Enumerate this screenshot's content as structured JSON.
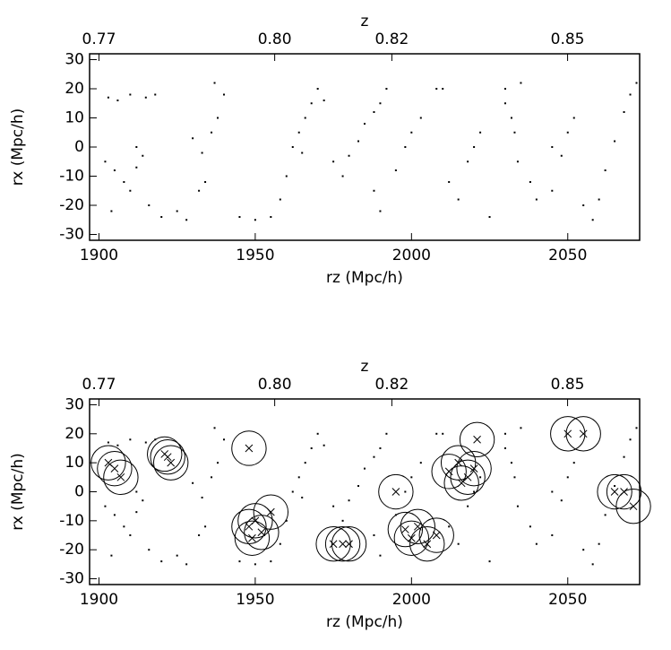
{
  "chart_data": [
    {
      "type": "scatter",
      "x_label": "rz (Mpc/h)",
      "y_label": "rx (Mpc/h)",
      "x2_label": "z",
      "xlim": [
        1897,
        2073
      ],
      "ylim": [
        -32,
        32
      ],
      "xticks": [
        1900,
        1950,
        2000,
        2050
      ],
      "yticks": [
        -30,
        -20,
        -10,
        0,
        10,
        20,
        30
      ],
      "x2lim": [
        0.7684,
        0.8623
      ],
      "x2ticks": [
        0.77,
        {
          "value": 0.8,
          "label": "0.80"
        },
        0.82,
        0.85
      ],
      "series": [
        {
          "marker": "dot",
          "color": "#000000",
          "x": [
            1903,
            1906,
            1910,
            1915,
            1918,
            1902,
            1905,
            1908,
            1910,
            1912,
            1914,
            1912,
            1916,
            1904,
            1920,
            1925,
            1928,
            1932,
            1934,
            1933,
            1936,
            1938,
            1940,
            1937,
            1930,
            1945,
            1950,
            1955,
            1958,
            1960,
            1962,
            1964,
            1966,
            1968,
            1970,
            1972,
            1965,
            1975,
            1978,
            1980,
            1983,
            1985,
            1988,
            1990,
            1992,
            1988,
            1990,
            1995,
            1998,
            2000,
            2003,
            2008,
            2010,
            2012,
            2015,
            2018,
            2020,
            2022,
            2025,
            2030,
            2032,
            2033,
            2030,
            2035,
            2034,
            2038,
            2040,
            2045,
            2048,
            2050,
            2052,
            2045,
            2055,
            2058,
            2060,
            2062,
            2065,
            2068,
            2070,
            2072
          ],
          "y": [
            17,
            16,
            18,
            17,
            18,
            -5,
            -8,
            -12,
            -15,
            -7,
            -3,
            0,
            -20,
            -22,
            -24,
            -22,
            -25,
            -15,
            -12,
            -2,
            5,
            10,
            18,
            22,
            3,
            -24,
            -25,
            -24,
            -18,
            -10,
            0,
            5,
            10,
            15,
            20,
            16,
            -2,
            -5,
            -10,
            -3,
            2,
            8,
            12,
            15,
            20,
            -15,
            -22,
            -8,
            0,
            5,
            10,
            20,
            20,
            -12,
            -18,
            -5,
            0,
            5,
            -24,
            15,
            10,
            5,
            20,
            22,
            -5,
            -12,
            -18,
            0,
            -3,
            5,
            10,
            -15,
            -20,
            -25,
            -18,
            -8,
            2,
            12,
            18,
            22
          ]
        }
      ]
    },
    {
      "type": "scatter",
      "x_label": "rz (Mpc/h)",
      "y_label": "rx (Mpc/h)",
      "x2_label": "z",
      "xlim": [
        1897,
        2073
      ],
      "ylim": [
        -32,
        32
      ],
      "xticks": [
        1900,
        1950,
        2000,
        2050
      ],
      "yticks": [
        -30,
        -20,
        -10,
        0,
        10,
        20,
        30
      ],
      "x2lim": [
        0.7684,
        0.8623
      ],
      "x2ticks": [
        0.77,
        {
          "value": 0.8,
          "label": "0.80"
        },
        0.82,
        0.85
      ],
      "series": [
        {
          "marker": "dot",
          "color": "#000000",
          "x": [
            1903,
            1906,
            1910,
            1915,
            1918,
            1902,
            1905,
            1908,
            1910,
            1912,
            1914,
            1912,
            1916,
            1904,
            1920,
            1925,
            1928,
            1932,
            1934,
            1933,
            1936,
            1938,
            1940,
            1937,
            1930,
            1945,
            1950,
            1955,
            1958,
            1960,
            1962,
            1964,
            1966,
            1968,
            1970,
            1972,
            1965,
            1975,
            1978,
            1980,
            1983,
            1985,
            1988,
            1990,
            1992,
            1988,
            1990,
            1995,
            1998,
            2000,
            2003,
            2008,
            2010,
            2012,
            2015,
            2018,
            2020,
            2022,
            2025,
            2030,
            2032,
            2033,
            2030,
            2035,
            2034,
            2038,
            2040,
            2045,
            2048,
            2050,
            2052,
            2045,
            2055,
            2058,
            2060,
            2062,
            2065,
            2068,
            2070,
            2072
          ],
          "y": [
            17,
            16,
            18,
            17,
            18,
            -5,
            -8,
            -12,
            -15,
            -7,
            -3,
            0,
            -20,
            -22,
            -24,
            -22,
            -25,
            -15,
            -12,
            -2,
            5,
            10,
            18,
            22,
            3,
            -24,
            -25,
            -24,
            -18,
            -10,
            0,
            5,
            10,
            15,
            20,
            16,
            -2,
            -5,
            -10,
            -3,
            2,
            8,
            12,
            15,
            20,
            -15,
            -22,
            -8,
            0,
            5,
            10,
            20,
            20,
            -12,
            -18,
            -5,
            0,
            5,
            -24,
            15,
            10,
            5,
            20,
            22,
            -5,
            -12,
            -18,
            0,
            -3,
            5,
            10,
            -15,
            -20,
            -25,
            -18,
            -8,
            2,
            12,
            18,
            22
          ]
        },
        {
          "marker": "circle",
          "color": "#000000",
          "x": [
            1905,
            1903,
            1907,
            1922,
            1923,
            1921,
            1948,
            1948,
            1950,
            1952,
            1955,
            1949,
            1978,
            1980,
            1975,
            1995,
            1998,
            2002,
            2005,
            2000,
            2008,
            2012,
            2015,
            2018,
            2020,
            2016,
            2021,
            2050,
            2055,
            2065,
            2068,
            2071
          ],
          "y": [
            8,
            10,
            5,
            12,
            10,
            13,
            15,
            -12,
            -10,
            -14,
            -7,
            -16,
            -18,
            -18,
            -18,
            0,
            -13,
            -12,
            -18,
            -16,
            -15,
            7,
            10,
            5,
            8,
            3,
            18,
            20,
            20,
            0,
            0,
            -5
          ],
          "sizes": [
            5.5,
            5.5,
            5.5,
            5.5,
            5.5,
            5.5,
            5.5,
            5.5,
            5.5,
            5.5,
            5.5,
            5.5,
            5.5,
            5.5,
            5.5,
            5.5,
            5.5,
            5.5,
            5.5,
            5.5,
            5.5,
            5.5,
            5.5,
            5.5,
            5.5,
            5.5,
            5.5,
            5.5,
            5.5,
            5.5,
            5.5,
            5.5
          ]
        }
      ]
    }
  ]
}
